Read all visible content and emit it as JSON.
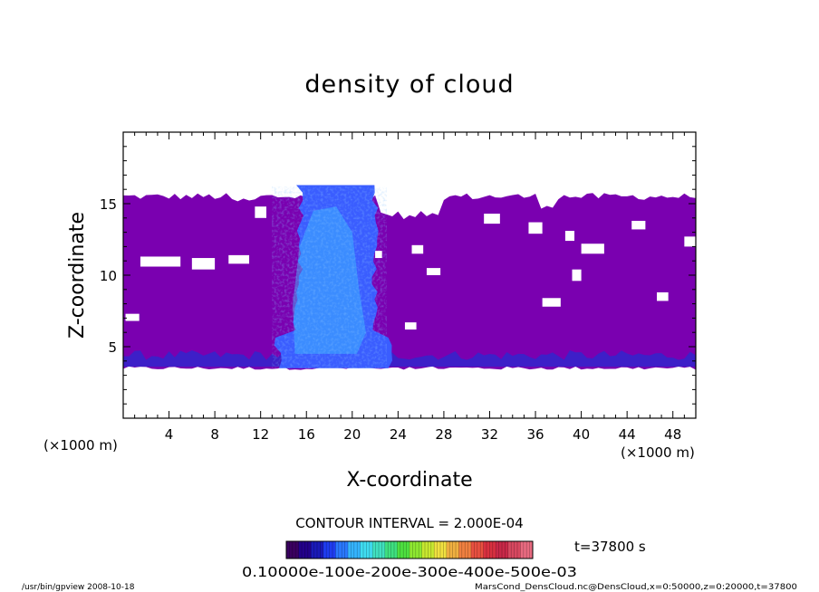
{
  "chart_data": {
    "type": "heatmap",
    "title": "density of cloud",
    "xlabel": "X-coordinate",
    "ylabel": "Z-coordinate",
    "x_units": "(×1000 m)",
    "y_units": "(×1000 m)",
    "xlim": [
      0,
      50
    ],
    "ylim": [
      0,
      20
    ],
    "x_ticks": [
      4,
      8,
      12,
      16,
      20,
      24,
      28,
      32,
      36,
      40,
      44,
      48
    ],
    "y_ticks": [
      5,
      10,
      15
    ],
    "cloud_layer": {
      "z_bottom": 3.5,
      "z_top": 15.5
    },
    "dense_column": {
      "x_range": [
        13,
        23
      ],
      "z_range": [
        3.5,
        16.3
      ]
    },
    "colors": {
      "background_fill": "#7a00b0",
      "column_fill": "#3a5dff",
      "column_core": "#3fc6ff",
      "low_layer": "#2a2ad0"
    },
    "contour_interval_label": "CONTOUR INTERVAL = 2.000E-04",
    "time_label": "t=37800 s",
    "colorbar": {
      "colors": [
        "#3a0060",
        "#22008a",
        "#1a1ab8",
        "#1f3df0",
        "#2a78ff",
        "#35b4ff",
        "#3fdcf0",
        "#40e0c0",
        "#3ee080",
        "#4ee040",
        "#8ee830",
        "#c8e830",
        "#f0e040",
        "#f0b040",
        "#f08040",
        "#e85040",
        "#d83040",
        "#c82848",
        "#d84860",
        "#e86a80"
      ],
      "tick_label": "0.10000e-100e-200e-300e-400e-500e-03"
    },
    "footer_left": "/usr/bin/gpview   2008-10-18",
    "footer_right": "MarsCond_DensCloud.nc@DensCloud,x=0:50000,z=0:20000,t=37800"
  }
}
